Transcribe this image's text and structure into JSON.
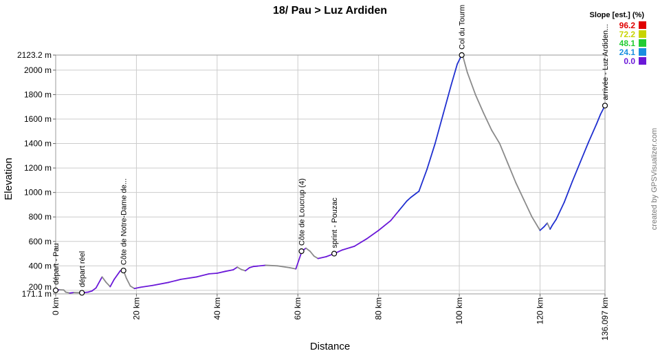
{
  "chart_data": {
    "type": "line",
    "title": "18/ Pau > Luz Ardiden",
    "xlabel": "Distance",
    "ylabel": "Elevation",
    "xlim": [
      0,
      136.097
    ],
    "ylim": [
      171.1,
      2123.2
    ],
    "x_ticks": [
      {
        "value": 0,
        "label": "0 km"
      },
      {
        "value": 20,
        "label": "20 km"
      },
      {
        "value": 40,
        "label": "40 km"
      },
      {
        "value": 60,
        "label": "60 km"
      },
      {
        "value": 80,
        "label": "80 km"
      },
      {
        "value": 100,
        "label": "100 km"
      },
      {
        "value": 120,
        "label": "120 km"
      },
      {
        "value": 136.097,
        "label": "136.097 km"
      }
    ],
    "y_ticks": [
      {
        "value": 171.1,
        "label": "171.1 m"
      },
      {
        "value": 200,
        "label": "200 m"
      },
      {
        "value": 400,
        "label": "400 m"
      },
      {
        "value": 600,
        "label": "600 m"
      },
      {
        "value": 800,
        "label": "800 m"
      },
      {
        "value": 1000,
        "label": "1000 m"
      },
      {
        "value": 1200,
        "label": "1200 m"
      },
      {
        "value": 1400,
        "label": "1400 m"
      },
      {
        "value": 1600,
        "label": "1600 m"
      },
      {
        "value": 1800,
        "label": "1800 m"
      },
      {
        "value": 2000,
        "label": "2000 m"
      },
      {
        "value": 2123.2,
        "label": "2123.2 m"
      }
    ],
    "grid": true,
    "series": [
      {
        "x": [
          0,
          1,
          2,
          2.5,
          3.5,
          4.5,
          6.5,
          8,
          9,
          10,
          11.5,
          12.5,
          13.5,
          14.5,
          16,
          16.8,
          17.5,
          18.5,
          19.5,
          21,
          24,
          28,
          31,
          35,
          38,
          40,
          42,
          44,
          45,
          46,
          47,
          48,
          49,
          50,
          52,
          55,
          58,
          59.5,
          61,
          62,
          63,
          64,
          65,
          67,
          69,
          71,
          74,
          77,
          80,
          83,
          85,
          87,
          88,
          90,
          92,
          94,
          96,
          98,
          99.5,
          100.6,
          101,
          102,
          104,
          106,
          108,
          110,
          112,
          114,
          116,
          118,
          120,
          121,
          121.8,
          122.5,
          123,
          124,
          126,
          128,
          130,
          132,
          134,
          135,
          136.097
        ],
        "y": [
          200,
          205,
          203,
          185,
          178,
          182,
          180,
          185,
          195,
          220,
          310,
          265,
          230,
          290,
          360,
          362,
          300,
          235,
          215,
          225,
          240,
          265,
          290,
          310,
          335,
          340,
          355,
          368,
          390,
          370,
          360,
          385,
          395,
          398,
          405,
          400,
          385,
          375,
          520,
          545,
          520,
          480,
          460,
          475,
          500,
          530,
          560,
          620,
          690,
          770,
          850,
          930,
          960,
          1010,
          1190,
          1400,
          1640,
          1880,
          2050,
          2123.2,
          2100,
          1980,
          1800,
          1650,
          1510,
          1400,
          1240,
          1080,
          940,
          800,
          690,
          720,
          750,
          700,
          730,
          780,
          920,
          1090,
          1250,
          1410,
          1560,
          1640,
          1710
        ]
      }
    ],
    "waypoints": [
      {
        "km": 0,
        "elev": 200,
        "label": "départ - Pau"
      },
      {
        "km": 6.5,
        "elev": 180,
        "label": "départ réel"
      },
      {
        "km": 16.8,
        "elev": 362,
        "label": "Côte de Notre-Dame de..."
      },
      {
        "km": 60.9,
        "elev": 520,
        "label": "Côte de Loucrup (4)"
      },
      {
        "km": 69,
        "elev": 500,
        "label": "sprint - Pouzac"
      },
      {
        "km": 100.6,
        "elev": 2123.2,
        "label": "Col du Tourm"
      },
      {
        "km": 136.097,
        "elev": 1710,
        "label": "arrivée - Luz Ardiden..."
      }
    ],
    "legend": {
      "title": "Slope [est.] (%)",
      "placement": "top-right",
      "entries": [
        {
          "value": "96.2",
          "color": "#e00000"
        },
        {
          "value": "72.2",
          "color": "#c8d400"
        },
        {
          "value": "48.1",
          "color": "#22cc33"
        },
        {
          "value": "24.1",
          "color": "#1a8fe0"
        },
        {
          "value": "0.0",
          "color": "#6a18d8"
        }
      ]
    },
    "colors": {
      "climb": "#1f2fd0",
      "climb_alt": "#6a18d8",
      "descent": "#8a8a8a",
      "grid": "#cccccc"
    }
  },
  "credit": "created by GPSVisualizer.com"
}
